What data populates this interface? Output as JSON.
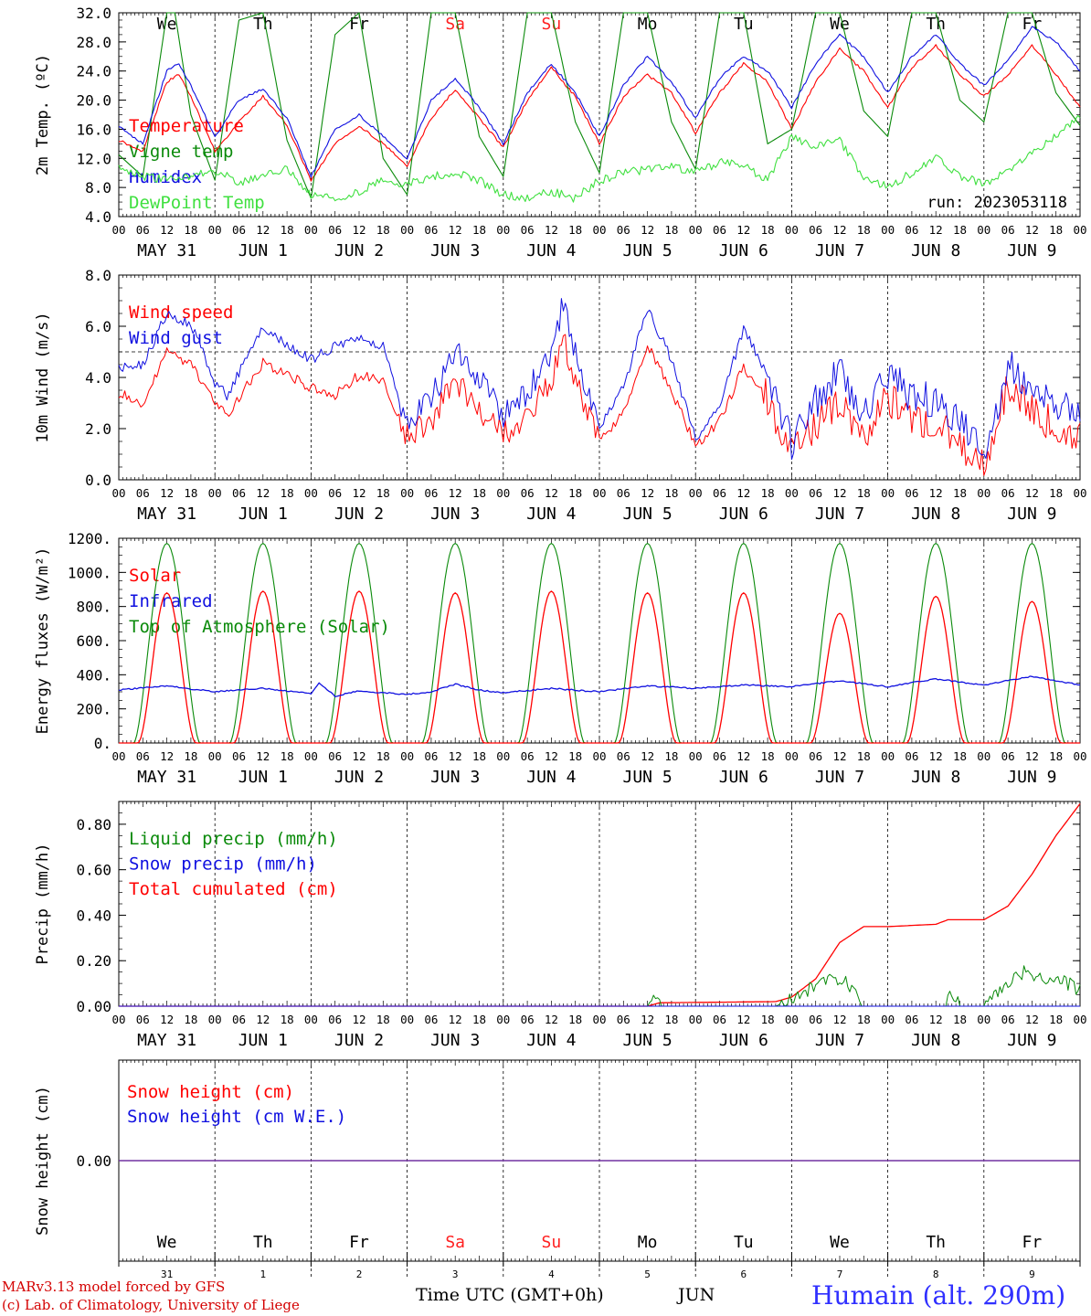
{
  "colors": {
    "red": "#ff0000",
    "darkgreen": "#0a8a0a",
    "blue": "#1010e0",
    "lightgreen": "#40e040",
    "purple": "#7030a0",
    "weekend": "#ff2020"
  },
  "run_label": "run: 2023053118",
  "x_hour_ticks": [
    "00",
    "06",
    "12",
    "18"
  ],
  "date_labels": [
    {
      "month": "MAY",
      "day": "31"
    },
    {
      "month": "JUN",
      "day": "1"
    },
    {
      "month": "JUN",
      "day": "2"
    },
    {
      "month": "JUN",
      "day": "3"
    },
    {
      "month": "JUN",
      "day": "4"
    },
    {
      "month": "JUN",
      "day": "5"
    },
    {
      "month": "JUN",
      "day": "6"
    },
    {
      "month": "JUN",
      "day": "7"
    },
    {
      "month": "JUN",
      "day": "8"
    },
    {
      "month": "JUN",
      "day": "9"
    }
  ],
  "weekdays": [
    {
      "name": "We",
      "weekend": false
    },
    {
      "name": "Th",
      "weekend": false
    },
    {
      "name": "Fr",
      "weekend": false
    },
    {
      "name": "Sa",
      "weekend": true
    },
    {
      "name": "Su",
      "weekend": true
    },
    {
      "name": "Mo",
      "weekend": false
    },
    {
      "name": "Tu",
      "weekend": false
    },
    {
      "name": "We",
      "weekend": false
    },
    {
      "name": "Th",
      "weekend": false
    },
    {
      "name": "Fr",
      "weekend": false
    }
  ],
  "bottom_day_numbers": [
    "31",
    "1",
    "2",
    "3",
    "4",
    "5",
    "6",
    "7",
    "8",
    "9"
  ],
  "footer": {
    "credit_line1": "MARv3.13 model forced by GFS",
    "credit_line2": "(c) Lab. of Climatology, University of Liege",
    "xlabel": "Time UTC (GMT+0h)",
    "month": "JUN",
    "station": "Humain (alt. 290m)"
  },
  "chart_data": [
    {
      "id": "temperature",
      "type": "line",
      "ylabel": "2m Temp. (ºC)",
      "ylim": [
        4.0,
        32.0
      ],
      "yticks": [
        "32.0",
        "28.0",
        "24.0",
        "20.0",
        "16.0",
        "12.0",
        "8.0",
        "4.0"
      ],
      "x_unit": "hours since 2023-05-31 00 UTC",
      "xlim": [
        0,
        240
      ],
      "legend": [
        {
          "label": "Temperature",
          "color": "red"
        },
        {
          "label": "Vigne temp",
          "color": "darkgreen"
        },
        {
          "label": "Humidex",
          "color": "blue"
        },
        {
          "label": "DewPoint Temp",
          "color": "lightgreen"
        }
      ],
      "series": [
        {
          "name": "Temperature",
          "color": "red",
          "x": [
            0,
            6,
            12,
            15,
            18,
            24,
            30,
            36,
            42,
            48,
            54,
            60,
            66,
            72,
            78,
            84,
            90,
            96,
            102,
            108,
            114,
            120,
            126,
            132,
            138,
            144,
            150,
            156,
            162,
            168,
            174,
            180,
            186,
            192,
            198,
            204,
            210,
            216,
            222,
            228,
            234,
            240
          ],
          "y": [
            14.5,
            13.0,
            22.5,
            23.5,
            20.5,
            13.0,
            17.0,
            20.5,
            16.5,
            9.0,
            14.0,
            16.5,
            14.0,
            11.0,
            17.5,
            21.5,
            17.5,
            13.5,
            20.0,
            24.5,
            20.5,
            14.0,
            20.5,
            23.5,
            21.0,
            15.5,
            21.0,
            25.0,
            22.5,
            16.0,
            22.5,
            27.0,
            24.0,
            19.0,
            24.5,
            27.5,
            23.5,
            20.5,
            23.5,
            27.5,
            23.5,
            19.0
          ]
        },
        {
          "name": "Vigne temp",
          "color": "darkgreen",
          "x": [
            0,
            6,
            12,
            14,
            18,
            24,
            30,
            36,
            42,
            48,
            54,
            60,
            66,
            72,
            78,
            84,
            90,
            96,
            102,
            108,
            114,
            120,
            126,
            132,
            138,
            144,
            150,
            156,
            162,
            168,
            174,
            180,
            186,
            192,
            198,
            204,
            210,
            216,
            222,
            228,
            234,
            240
          ],
          "y": [
            12.5,
            9.5,
            32.0,
            32.0,
            18.0,
            9.0,
            31.0,
            32.0,
            14.5,
            6.5,
            29.0,
            32.0,
            12.0,
            7.0,
            32.0,
            32.0,
            15.0,
            9.5,
            32.0,
            32.0,
            17.0,
            10.0,
            32.0,
            32.0,
            17.0,
            10.5,
            32.0,
            32.0,
            14.0,
            16.0,
            32.0,
            32.0,
            18.5,
            15.0,
            32.0,
            32.0,
            20.0,
            17.0,
            32.0,
            32.0,
            21.0,
            16.5
          ]
        },
        {
          "name": "Humidex",
          "color": "blue",
          "x": [
            0,
            6,
            12,
            15,
            18,
            24,
            30,
            36,
            42,
            48,
            54,
            60,
            66,
            72,
            78,
            84,
            90,
            96,
            102,
            108,
            114,
            120,
            126,
            132,
            138,
            144,
            150,
            156,
            162,
            168,
            174,
            180,
            186,
            192,
            198,
            204,
            210,
            216,
            222,
            228,
            234,
            240
          ],
          "y": [
            16.5,
            14.0,
            24.0,
            25.0,
            22.0,
            15.0,
            20.0,
            21.5,
            17.5,
            9.5,
            16.0,
            18.0,
            15.0,
            12.0,
            20.0,
            23.0,
            19.0,
            14.0,
            21.0,
            25.0,
            21.0,
            15.0,
            22.0,
            26.0,
            22.5,
            17.5,
            23.0,
            26.0,
            24.0,
            19.0,
            25.0,
            29.0,
            26.0,
            21.0,
            26.0,
            29.0,
            25.0,
            22.0,
            25.5,
            30.0,
            28.0,
            24.0
          ]
        },
        {
          "name": "DewPoint Temp",
          "color": "lightgreen",
          "x": [
            0,
            6,
            12,
            18,
            24,
            30,
            36,
            42,
            48,
            54,
            60,
            66,
            72,
            78,
            84,
            90,
            96,
            102,
            108,
            114,
            120,
            126,
            132,
            138,
            144,
            150,
            156,
            162,
            168,
            174,
            180,
            186,
            192,
            198,
            204,
            210,
            216,
            222,
            228,
            234,
            240
          ],
          "y": [
            11.0,
            9.5,
            9.0,
            9.5,
            10.5,
            8.5,
            9.5,
            10.5,
            7.0,
            6.5,
            7.5,
            9.0,
            8.5,
            9.5,
            10.0,
            9.0,
            7.0,
            6.5,
            7.5,
            6.5,
            9.0,
            10.0,
            10.5,
            11.0,
            10.0,
            11.5,
            11.0,
            9.0,
            15.0,
            13.5,
            14.5,
            9.5,
            8.0,
            10.0,
            12.0,
            9.5,
            8.5,
            10.5,
            12.5,
            15.0,
            18.0
          ]
        }
      ]
    },
    {
      "id": "wind",
      "type": "line",
      "ylabel": "10m Wind (m/s)",
      "ylim": [
        0.0,
        8.0
      ],
      "yticks": [
        "8.0",
        "6.0",
        "4.0",
        "2.0",
        "0.0"
      ],
      "x_unit": "hours since 2023-05-31 00 UTC",
      "xlim": [
        0,
        240
      ],
      "reference_line": 5.0,
      "legend": [
        {
          "label": "Wind speed",
          "color": "red"
        },
        {
          "label": "Wind gust",
          "color": "blue"
        }
      ],
      "series": [
        {
          "name": "Wind speed",
          "color": "red",
          "x": [
            0,
            6,
            12,
            18,
            24,
            27,
            36,
            42,
            48,
            54,
            60,
            66,
            72,
            78,
            84,
            90,
            96,
            102,
            108,
            111,
            114,
            120,
            126,
            132,
            138,
            144,
            150,
            156,
            162,
            168,
            174,
            180,
            186,
            192,
            198,
            204,
            210,
            216,
            222,
            228,
            234,
            240
          ],
          "y": [
            3.4,
            3.0,
            5.0,
            4.5,
            3.0,
            2.5,
            4.6,
            4.1,
            3.6,
            3.3,
            4.1,
            3.9,
            1.6,
            2.3,
            3.8,
            2.8,
            1.8,
            2.6,
            4.0,
            5.5,
            4.0,
            1.5,
            2.6,
            5.3,
            3.5,
            1.3,
            2.3,
            4.4,
            3.2,
            1.0,
            2.2,
            3.0,
            1.6,
            3.2,
            2.3,
            2.2,
            1.5,
            0.4,
            3.7,
            2.6,
            2.1,
            1.7
          ]
        },
        {
          "name": "Wind gust",
          "color": "blue",
          "x": [
            0,
            6,
            12,
            18,
            24,
            27,
            36,
            42,
            48,
            54,
            60,
            66,
            72,
            78,
            84,
            90,
            96,
            102,
            108,
            111,
            114,
            120,
            126,
            132,
            138,
            144,
            150,
            156,
            162,
            168,
            174,
            180,
            186,
            192,
            198,
            204,
            210,
            216,
            222,
            228,
            234,
            240
          ],
          "y": [
            4.4,
            4.5,
            6.5,
            6.1,
            3.8,
            3.3,
            6.0,
            5.3,
            4.7,
            5.2,
            5.5,
            5.2,
            2.0,
            3.2,
            5.0,
            4.0,
            2.5,
            3.4,
            5.0,
            7.0,
            5.0,
            2.0,
            3.6,
            6.7,
            4.7,
            1.6,
            2.9,
            5.9,
            4.2,
            1.4,
            3.0,
            4.2,
            2.5,
            4.2,
            3.2,
            3.1,
            2.2,
            1.0,
            4.5,
            3.5,
            3.0,
            2.5
          ]
        }
      ]
    },
    {
      "id": "energy",
      "type": "line",
      "ylabel": "Energy fluxes (W/m²)",
      "ylim": [
        0,
        1200
      ],
      "yticks": [
        "1200.",
        "1000.",
        "800.",
        "600.",
        "400.",
        "200.",
        "0."
      ],
      "x_unit": "hours since 2023-05-31 00 UTC",
      "xlim": [
        0,
        240
      ],
      "legend": [
        {
          "label": "Solar",
          "color": "red"
        },
        {
          "label": "Infrared",
          "color": "blue"
        },
        {
          "label": "Top of Atmosphere (Solar)",
          "color": "darkgreen"
        }
      ],
      "toa_daily_peak": 1170,
      "solar_daily_peaks": [
        880,
        890,
        890,
        880,
        890,
        880,
        880,
        760,
        860,
        830
      ],
      "series": [
        {
          "name": "Infrared",
          "color": "blue",
          "x": [
            0,
            12,
            24,
            36,
            48,
            50,
            54,
            60,
            72,
            78,
            84,
            90,
            96,
            108,
            120,
            132,
            144,
            156,
            168,
            180,
            192,
            204,
            216,
            228,
            240
          ],
          "y": [
            310,
            335,
            300,
            320,
            290,
            355,
            275,
            305,
            285,
            300,
            345,
            310,
            295,
            320,
            300,
            335,
            320,
            340,
            330,
            365,
            330,
            375,
            340,
            390,
            340
          ]
        }
      ]
    },
    {
      "id": "precip",
      "type": "line",
      "ylabel": "Precip (mm/h)",
      "ylim": [
        0.0,
        0.9
      ],
      "yticks": [
        "0.80",
        "0.60",
        "0.40",
        "0.20",
        "0.00"
      ],
      "x_unit": "hours since 2023-05-31 00 UTC",
      "xlim": [
        0,
        240
      ],
      "legend": [
        {
          "label": "Liquid precip (mm/h)",
          "color": "darkgreen"
        },
        {
          "label": "Snow precip (mm/h)",
          "color": "blue"
        },
        {
          "label": "Total cumulated (cm)",
          "color": "red"
        }
      ],
      "series": [
        {
          "name": "Total cumulated (cm)",
          "color": "red",
          "x": [
            0,
            132,
            135,
            164,
            168,
            174,
            180,
            186,
            192,
            204,
            207,
            216,
            222,
            228,
            234,
            240
          ],
          "y": [
            0.0,
            0.0,
            0.015,
            0.02,
            0.04,
            0.12,
            0.28,
            0.35,
            0.35,
            0.36,
            0.38,
            0.38,
            0.44,
            0.58,
            0.75,
            0.89
          ]
        },
        {
          "name": "Liquid precip (mm/h)",
          "color": "darkgreen",
          "x": [
            0,
            132,
            134,
            136,
            164,
            168,
            174,
            178,
            182,
            186,
            190,
            206,
            208,
            210,
            216,
            222,
            226,
            230,
            234,
            240
          ],
          "y": [
            0.0,
            0.0,
            0.03,
            0.0,
            0.0,
            0.03,
            0.09,
            0.13,
            0.1,
            0.0,
            0.0,
            0.0,
            0.06,
            0.0,
            0.0,
            0.1,
            0.15,
            0.12,
            0.13,
            0.07
          ]
        },
        {
          "name": "Snow precip (mm/h)",
          "color": "blue",
          "x": [
            0,
            240
          ],
          "y": [
            0.0,
            0.0
          ]
        }
      ]
    },
    {
      "id": "snow",
      "type": "line",
      "ylabel": "Snow height (cm)",
      "ylim": [
        -1,
        1
      ],
      "yticks": [
        "0.00"
      ],
      "x_unit": "hours since 2023-05-31 00 UTC",
      "xlim": [
        0,
        240
      ],
      "legend": [
        {
          "label": "Snow height (cm)",
          "color": "red"
        },
        {
          "label": "Snow height (cm W.E.)",
          "color": "blue"
        }
      ],
      "series": [
        {
          "name": "Snow height",
          "color": "purple",
          "x": [
            0,
            240
          ],
          "y": [
            0.0,
            0.0
          ]
        }
      ]
    }
  ]
}
